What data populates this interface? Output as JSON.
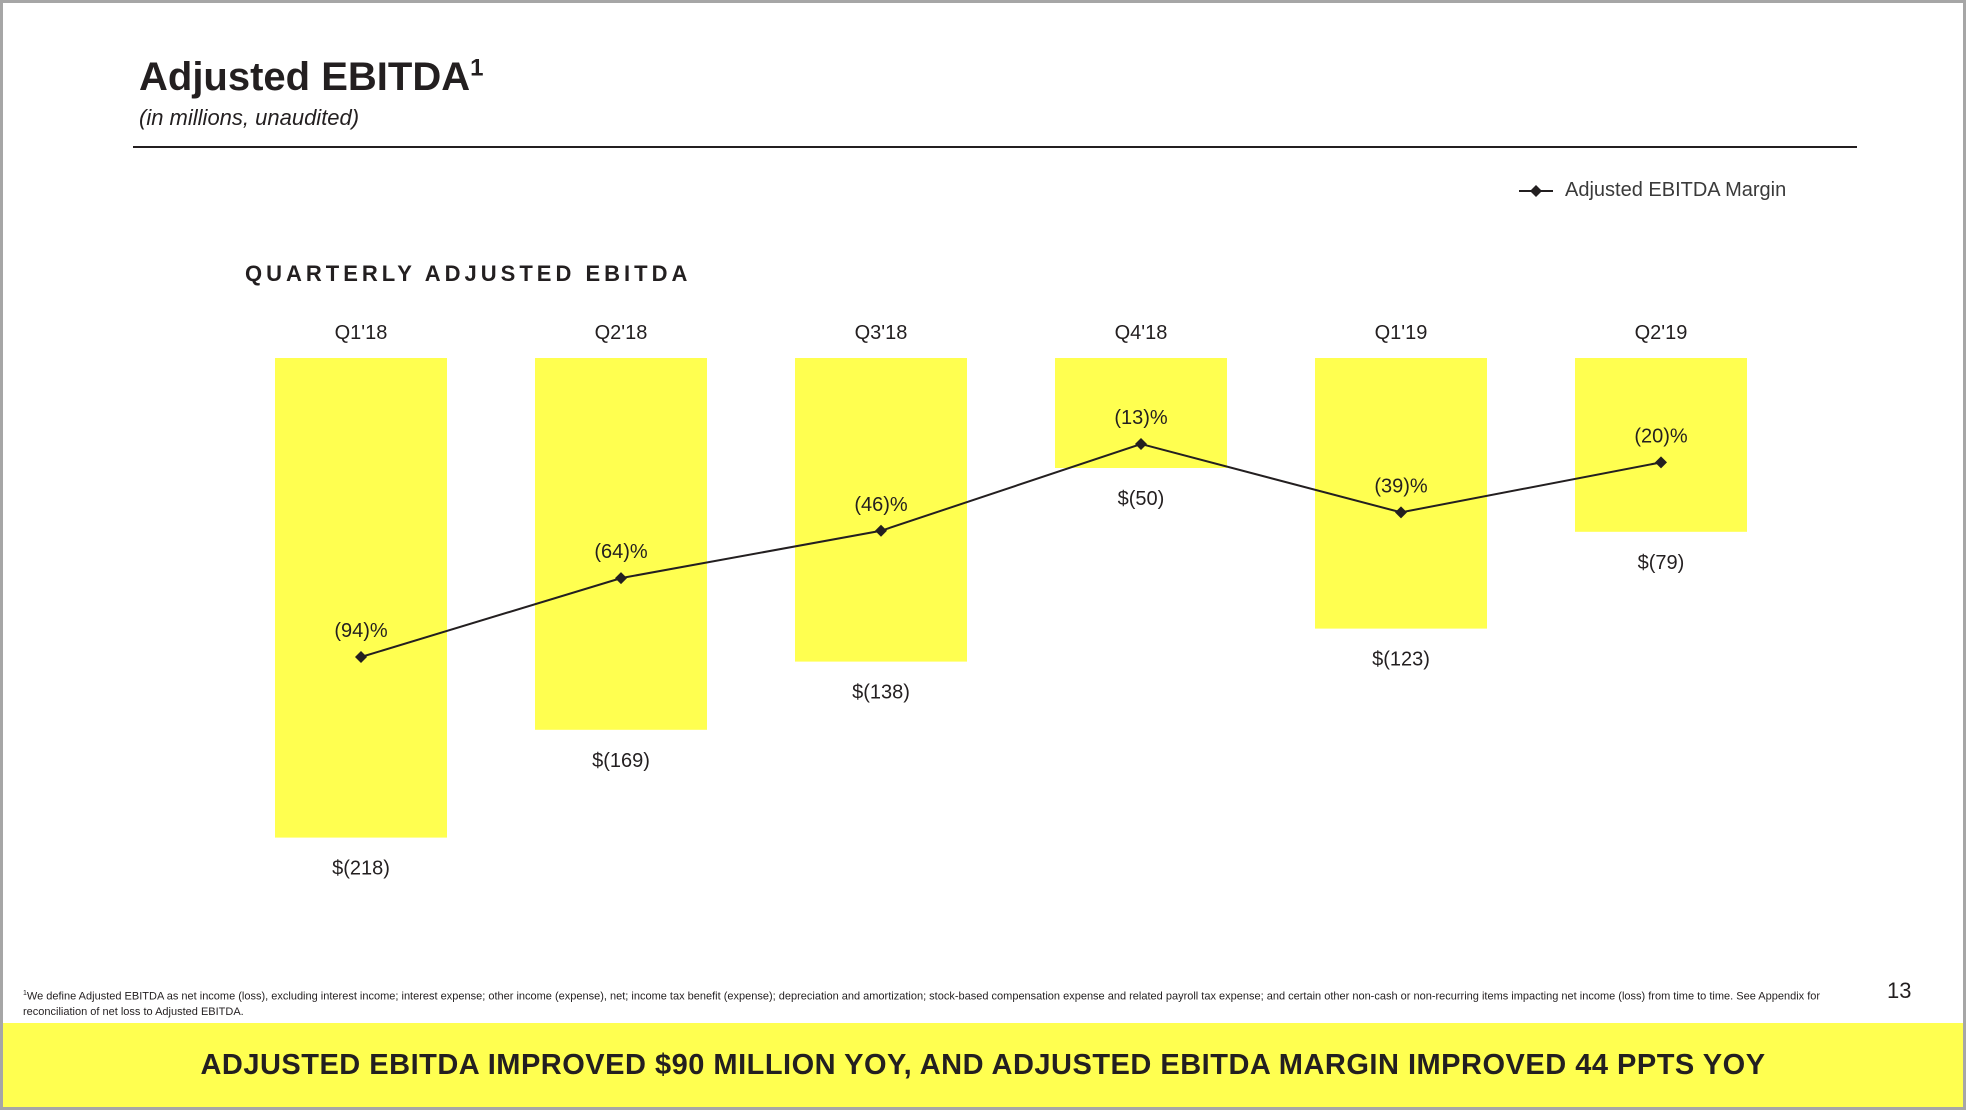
{
  "header": {
    "title": "Adjusted EBITDA",
    "title_sup": "1",
    "subtitle": "(in millions, unaudited)"
  },
  "legend": {
    "label": "Adjusted EBITDA Margin",
    "marker_icon": "diamond-line-icon"
  },
  "section_title": "QUARTERLY ADJUSTED EBITDA",
  "chart_data": {
    "type": "bar",
    "title": "QUARTERLY ADJUSTED EBITDA",
    "categories": [
      "Q1'18",
      "Q2'18",
      "Q3'18",
      "Q4'18",
      "Q1'19",
      "Q2'19"
    ],
    "series": [
      {
        "name": "Adjusted EBITDA",
        "type": "bar",
        "values": [
          -218,
          -169,
          -138,
          -50,
          -123,
          -79
        ],
        "labels": [
          "$(218)",
          "$(169)",
          "$(138)",
          "$(50)",
          "$(123)",
          "$(79)"
        ],
        "color": "#ffff50"
      },
      {
        "name": "Adjusted EBITDA Margin",
        "type": "line",
        "values": [
          -94,
          -64,
          -46,
          -13,
          -39,
          -20
        ],
        "labels": [
          "(94)%",
          "(64)%",
          "(46)%",
          "(13)%",
          "(39)%",
          "(20)%"
        ],
        "color": "#231f20"
      }
    ],
    "units": "$ millions",
    "xlabel": "",
    "ylabel": "",
    "ylim": [
      -218,
      0
    ],
    "margin_ylim": [
      -94,
      -13
    ],
    "grid": false,
    "legend_position": "top-right"
  },
  "footnote": {
    "sup": "1",
    "text": "We define Adjusted EBITDA as net income (loss), excluding interest income; interest expense; other income (expense), net; income tax benefit (expense); depreciation and amortization; stock-based compensation expense and related payroll tax expense; and certain other non-cash or non-recurring items impacting net income (loss) from time to time. See Appendix for reconciliation of net loss to Adjusted EBITDA."
  },
  "page_number": "13",
  "banner": {
    "text": "ADJUSTED EBITDA IMPROVED $90 MILLION YOY, AND ADJUSTED EBITDA MARGIN IMPROVED 44 PPTS YOY"
  },
  "colors": {
    "accent": "#ffff50",
    "text": "#231f20",
    "border": "#a6a6a6"
  }
}
